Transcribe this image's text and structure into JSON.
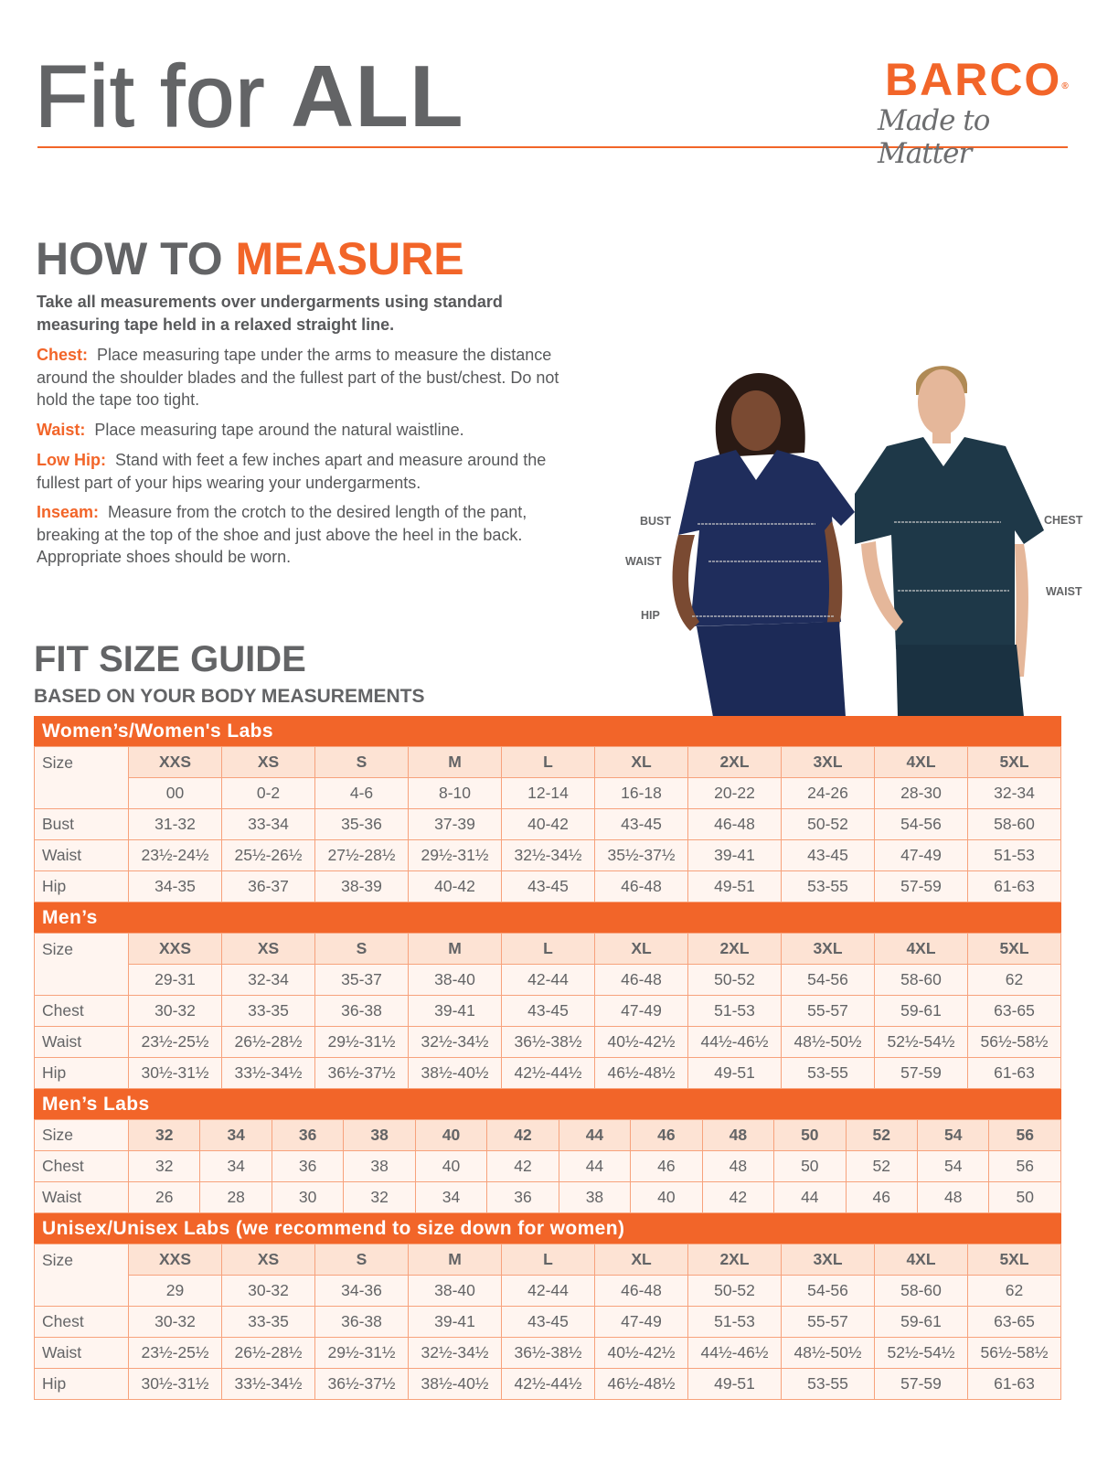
{
  "header": {
    "title_light": "Fit for ",
    "title_bold": "ALL"
  },
  "logo": {
    "brand": "BARCO",
    "registered": "®",
    "tagline": "Made to Matter"
  },
  "how_to": {
    "title_gray": "HOW TO ",
    "title_orange": "MEASURE",
    "intro": "Take all measurements over undergarments using standard measuring tape held in a relaxed straight line.",
    "items": [
      {
        "label": "Chest:",
        "text": "Place measuring tape under the arms to measure the distance around the shoulder blades and the fullest part of the bust/chest. Do not hold the tape too tight."
      },
      {
        "label": "Waist:",
        "text": "Place measuring tape around the natural waistline."
      },
      {
        "label": "Low Hip:",
        "text": "Stand with feet a few inches apart and measure around the fullest part of your hips wearing your undergarments."
      },
      {
        "label": "Inseam:",
        "text": "Measure from the crotch to the desired length of the pant, breaking at the top of the shoe and just above the heel in the back. Appropriate shoes should be worn."
      }
    ]
  },
  "photo": {
    "labels": {
      "bust": "BUST",
      "waist_w": "WAIST",
      "hip": "HIP",
      "chest": "CHEST",
      "waist_m": "WAIST"
    }
  },
  "guide": {
    "title": "FIT SIZE GUIDE",
    "subtitle": "BASED ON YOUR BODY MEASUREMENTS"
  },
  "colors": {
    "accent": "#f26529",
    "text": "#636466",
    "cell_bg": "#fff5f0",
    "size_bg": "#fde3d4",
    "border": "#f7a27c"
  },
  "tables": [
    {
      "title": "Women’s/Women's Labs",
      "size_label": "Size",
      "sizes": [
        "XXS",
        "XS",
        "S",
        "M",
        "L",
        "XL",
        "2XL",
        "3XL",
        "4XL",
        "5XL"
      ],
      "size_sub": [
        "00",
        "0-2",
        "4-6",
        "8-10",
        "12-14",
        "16-18",
        "20-22",
        "24-26",
        "28-30",
        "32-34"
      ],
      "rows": [
        {
          "label": "Bust",
          "values": [
            "31-32",
            "33-34",
            "35-36",
            "37-39",
            "40-42",
            "43-45",
            "46-48",
            "50-52",
            "54-56",
            "58-60"
          ]
        },
        {
          "label": "Waist",
          "values": [
            "23½-24½",
            "25½-26½",
            "27½-28½",
            "29½-31½",
            "32½-34½",
            "35½-37½",
            "39-41",
            "43-45",
            "47-49",
            "51-53"
          ]
        },
        {
          "label": "Hip",
          "values": [
            "34-35",
            "36-37",
            "38-39",
            "40-42",
            "43-45",
            "46-48",
            "49-51",
            "53-55",
            "57-59",
            "61-63"
          ]
        }
      ]
    },
    {
      "title": "Men’s",
      "size_label": "Size",
      "sizes": [
        "XXS",
        "XS",
        "S",
        "M",
        "L",
        "XL",
        "2XL",
        "3XL",
        "4XL",
        "5XL"
      ],
      "size_sub": [
        "29-31",
        "32-34",
        "35-37",
        "38-40",
        "42-44",
        "46-48",
        "50-52",
        "54-56",
        "58-60",
        "62"
      ],
      "rows": [
        {
          "label": "Chest",
          "values": [
            "30-32",
            "33-35",
            "36-38",
            "39-41",
            "43-45",
            "47-49",
            "51-53",
            "55-57",
            "59-61",
            "63-65"
          ]
        },
        {
          "label": "Waist",
          "values": [
            "23½-25½",
            "26½-28½",
            "29½-31½",
            "32½-34½",
            "36½-38½",
            "40½-42½",
            "44½-46½",
            "48½-50½",
            "52½-54½",
            "56½-58½"
          ]
        },
        {
          "label": "Hip",
          "values": [
            "30½-31½",
            "33½-34½",
            "36½-37½",
            "38½-40½",
            "42½-44½",
            "46½-48½",
            "49-51",
            "53-55",
            "57-59",
            "61-63"
          ]
        }
      ]
    },
    {
      "title": "Men’s Labs",
      "size_label": "Size",
      "sizes": [
        "32",
        "34",
        "36",
        "38",
        "40",
        "42",
        "44",
        "46",
        "48",
        "50",
        "52",
        "54",
        "56"
      ],
      "rows": [
        {
          "label": "Chest",
          "values": [
            "32",
            "34",
            "36",
            "38",
            "40",
            "42",
            "44",
            "46",
            "48",
            "50",
            "52",
            "54",
            "56"
          ]
        },
        {
          "label": "Waist",
          "values": [
            "26",
            "28",
            "30",
            "32",
            "34",
            "36",
            "38",
            "40",
            "42",
            "44",
            "46",
            "48",
            "50"
          ]
        }
      ]
    },
    {
      "title": "Unisex/Unisex Labs (we recommend to size down for women)",
      "size_label": "Size",
      "sizes": [
        "XXS",
        "XS",
        "S",
        "M",
        "L",
        "XL",
        "2XL",
        "3XL",
        "4XL",
        "5XL"
      ],
      "size_sub": [
        "29",
        "30-32",
        "34-36",
        "38-40",
        "42-44",
        "46-48",
        "50-52",
        "54-56",
        "58-60",
        "62"
      ],
      "rows": [
        {
          "label": "Chest",
          "values": [
            "30-32",
            "33-35",
            "36-38",
            "39-41",
            "43-45",
            "47-49",
            "51-53",
            "55-57",
            "59-61",
            "63-65"
          ]
        },
        {
          "label": "Waist",
          "values": [
            "23½-25½",
            "26½-28½",
            "29½-31½",
            "32½-34½",
            "36½-38½",
            "40½-42½",
            "44½-46½",
            "48½-50½",
            "52½-54½",
            "56½-58½"
          ]
        },
        {
          "label": "Hip",
          "values": [
            "30½-31½",
            "33½-34½",
            "36½-37½",
            "38½-40½",
            "42½-44½",
            "46½-48½",
            "49-51",
            "53-55",
            "57-59",
            "61-63"
          ]
        }
      ]
    }
  ]
}
